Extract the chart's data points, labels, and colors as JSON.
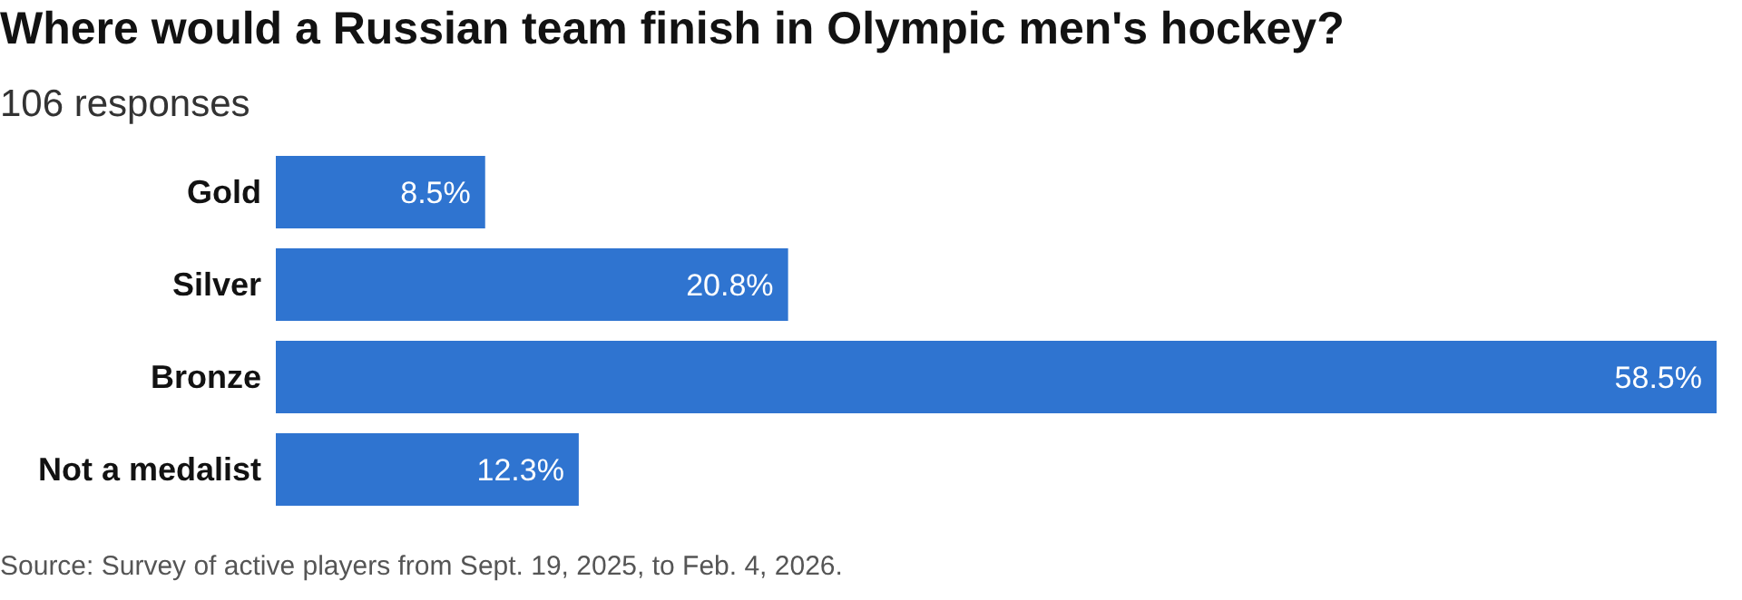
{
  "chart_data": {
    "type": "bar",
    "orientation": "horizontal",
    "title": "Where would a Russian team finish in Olympic men's hockey?",
    "subtitle": "106 responses",
    "categories": [
      "Gold",
      "Silver",
      "Bronze",
      "Not a medalist"
    ],
    "values": [
      8.5,
      20.8,
      58.5,
      12.3
    ],
    "value_labels": [
      "8.5%",
      "20.8%",
      "58.5%",
      "12.3%"
    ],
    "color": "#2f74d0",
    "annotations": [
      "Source: Survey of active players from Sept. 19, 2025, to Feb. 4, 2026."
    ]
  }
}
